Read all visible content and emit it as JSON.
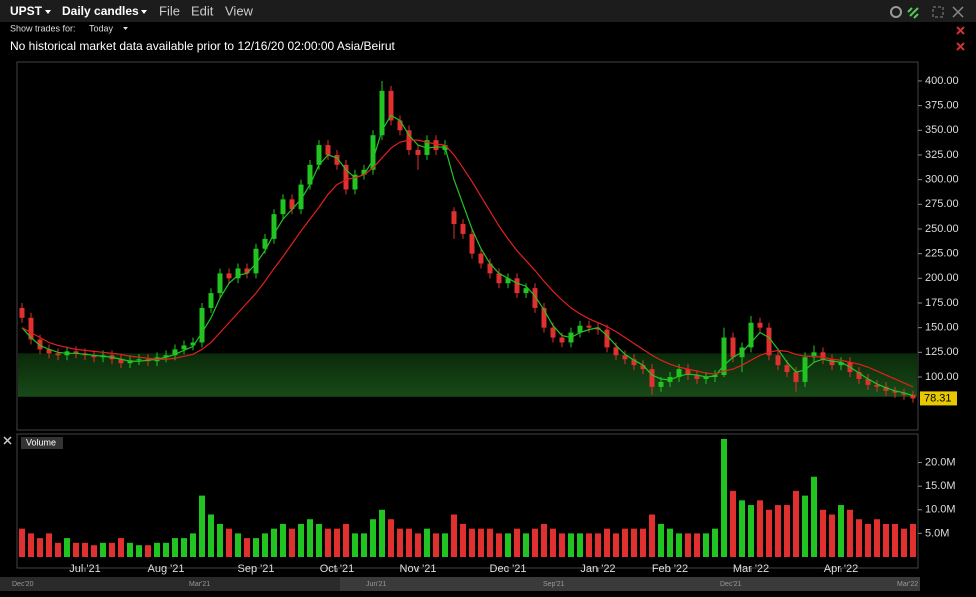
{
  "toolbar": {
    "symbol": "UPST",
    "interval": "Daily candles",
    "menu": [
      "File",
      "Edit",
      "View"
    ],
    "show_trades_label": "Show trades for:",
    "show_trades_value": "Today"
  },
  "notice": "No historical market data available prior to 12/16/20 02:00:00 Asia/Beirut",
  "chart_data": {
    "type": "candlestick",
    "up_color": "#22c422",
    "down_color": "#e03030",
    "open": [
      170,
      160,
      138,
      128,
      124,
      122,
      126,
      124,
      122,
      120,
      122,
      118,
      114,
      117,
      118,
      116,
      120,
      122,
      128,
      132,
      135,
      170,
      185,
      205,
      200,
      210,
      205,
      230,
      240,
      265,
      280,
      270,
      295,
      315,
      335,
      325,
      315,
      290,
      305,
      310,
      345,
      390,
      360,
      350,
      330,
      325,
      340,
      330,
      268,
      255,
      245,
      225,
      215,
      205,
      195,
      200,
      185,
      190,
      170,
      150,
      140,
      135,
      145,
      152,
      150,
      148,
      130,
      122,
      118,
      112,
      108,
      90,
      95,
      100,
      108,
      102,
      98,
      100,
      102,
      140,
      120,
      130,
      155,
      150,
      122,
      112,
      105,
      95,
      120,
      125,
      118,
      112,
      115,
      105,
      98,
      92,
      90,
      86,
      84,
      82
    ],
    "high": [
      175,
      165,
      143,
      133,
      129,
      131,
      131,
      129,
      127,
      127,
      127,
      123,
      122,
      123,
      123,
      125,
      127,
      133,
      137,
      140,
      175,
      190,
      210,
      210,
      215,
      215,
      235,
      245,
      270,
      285,
      285,
      300,
      320,
      340,
      340,
      330,
      320,
      310,
      315,
      350,
      400,
      395,
      365,
      355,
      335,
      345,
      345,
      340,
      272,
      260,
      250,
      230,
      220,
      210,
      205,
      205,
      195,
      195,
      175,
      155,
      145,
      150,
      157,
      157,
      155,
      153,
      135,
      127,
      123,
      117,
      113,
      100,
      105,
      113,
      113,
      107,
      105,
      107,
      150,
      145,
      135,
      162,
      160,
      155,
      127,
      117,
      110,
      125,
      132,
      130,
      123,
      120,
      120,
      110,
      103,
      97,
      95,
      90,
      88,
      86
    ],
    "low": [
      155,
      133,
      123,
      119,
      117,
      117,
      119,
      117,
      115,
      115,
      113,
      109,
      109,
      112,
      111,
      111,
      115,
      117,
      123,
      127,
      130,
      165,
      180,
      195,
      195,
      200,
      200,
      225,
      235,
      260,
      265,
      265,
      290,
      310,
      320,
      310,
      285,
      285,
      300,
      305,
      340,
      355,
      345,
      325,
      310,
      320,
      325,
      325,
      240,
      240,
      220,
      210,
      200,
      190,
      190,
      180,
      180,
      165,
      145,
      135,
      130,
      130,
      140,
      145,
      143,
      125,
      117,
      113,
      107,
      103,
      82,
      85,
      90,
      95,
      97,
      93,
      93,
      95,
      100,
      115,
      105,
      125,
      145,
      117,
      107,
      100,
      85,
      90,
      115,
      113,
      107,
      107,
      100,
      93,
      87,
      85,
      81,
      79,
      77,
      74
    ],
    "close": [
      160,
      138,
      128,
      124,
      122,
      126,
      124,
      122,
      120,
      122,
      118,
      114,
      117,
      118,
      116,
      120,
      122,
      128,
      132,
      135,
      170,
      185,
      205,
      200,
      210,
      205,
      230,
      240,
      265,
      280,
      270,
      295,
      315,
      335,
      325,
      315,
      290,
      305,
      310,
      345,
      390,
      360,
      350,
      330,
      325,
      340,
      330,
      335,
      255,
      245,
      225,
      215,
      205,
      195,
      200,
      185,
      190,
      170,
      150,
      140,
      135,
      145,
      152,
      150,
      148,
      130,
      122,
      118,
      112,
      108,
      90,
      95,
      100,
      108,
      102,
      98,
      100,
      102,
      140,
      120,
      130,
      155,
      150,
      122,
      112,
      105,
      95,
      120,
      125,
      118,
      112,
      115,
      105,
      98,
      92,
      90,
      86,
      84,
      82,
      78.31
    ],
    "ma_lines": [
      {
        "color": "#22c422",
        "values": [
          150,
          140,
          132,
          128,
          125,
          124,
          124,
          123,
          122,
          121,
          120,
          118,
          116,
          116,
          117,
          118,
          120,
          123,
          127,
          131,
          145,
          160,
          180,
          195,
          203,
          205,
          215,
          228,
          245,
          260,
          270,
          280,
          295,
          315,
          325,
          322,
          310,
          302,
          305,
          320,
          350,
          365,
          360,
          345,
          335,
          332,
          333,
          333,
          300,
          275,
          250,
          230,
          215,
          205,
          200,
          195,
          192,
          182,
          168,
          152,
          142,
          140,
          145,
          148,
          150,
          142,
          132,
          123,
          117,
          112,
          102,
          98,
          97,
          101,
          103,
          102,
          100,
          101,
          112,
          120,
          125,
          135,
          145,
          140,
          128,
          115,
          105,
          107,
          115,
          118,
          116,
          115,
          110,
          104,
          98,
          93,
          89,
          86,
          84,
          81
        ]
      },
      {
        "color": "#e02020",
        "values": [
          150,
          145,
          140,
          135,
          132,
          130,
          128,
          127,
          126,
          125,
          124,
          123,
          121,
          120,
          119,
          118,
          118,
          119,
          121,
          123,
          128,
          135,
          145,
          155,
          165,
          175,
          185,
          197,
          210,
          222,
          235,
          248,
          260,
          272,
          285,
          295,
          300,
          302,
          305,
          312,
          322,
          332,
          338,
          340,
          340,
          338,
          336,
          335,
          325,
          312,
          298,
          283,
          268,
          253,
          240,
          228,
          218,
          208,
          197,
          187,
          178,
          170,
          164,
          159,
          155,
          151,
          146,
          140,
          134,
          128,
          122,
          117,
          113,
          110,
          108,
          106,
          104,
          103,
          106,
          108,
          112,
          117,
          122,
          125,
          127,
          126,
          123,
          121,
          121,
          120,
          118,
          117,
          115,
          113,
          110,
          106,
          102,
          98,
          94,
          90
        ]
      }
    ],
    "band": [
      80,
      124
    ],
    "ylim": [
      46.3,
      419.2
    ],
    "yticks": [
      {
        "value": 100,
        "label": "100.00"
      },
      {
        "value": 125,
        "label": "125.00"
      },
      {
        "value": 150,
        "label": "150.00"
      },
      {
        "value": 175,
        "label": "175.00"
      },
      {
        "value": 200,
        "label": "200.00"
      },
      {
        "value": 225,
        "label": "225.00"
      },
      {
        "value": 250,
        "label": "250.00"
      },
      {
        "value": 275,
        "label": "275.00"
      },
      {
        "value": 300,
        "label": "300.00"
      },
      {
        "value": 325,
        "label": "325.00"
      },
      {
        "value": 350,
        "label": "350.00"
      },
      {
        "value": 375,
        "label": "375.00"
      },
      {
        "value": 400,
        "label": "400.00"
      }
    ],
    "xticks": [
      {
        "value": 7,
        "label": "Jul '21"
      },
      {
        "value": 16,
        "label": "Aug '21"
      },
      {
        "value": 26,
        "label": "Sep '21"
      },
      {
        "value": 35,
        "label": "Oct '21"
      },
      {
        "value": 44,
        "label": "Nov '21"
      },
      {
        "value": 54,
        "label": "Dec '21"
      },
      {
        "value": 64,
        "label": "Jan '22"
      },
      {
        "value": 72,
        "label": "Feb '22"
      },
      {
        "value": 81,
        "label": "Mar '22"
      },
      {
        "value": 91,
        "label": "Apr '22"
      }
    ],
    "volume": {
      "title": "Volume",
      "ylim": [
        0,
        25200000
      ],
      "yticks": [
        {
          "value": 5000000,
          "label": "5.0M"
        },
        {
          "value": 10000000,
          "label": "10.0M"
        },
        {
          "value": 15000000,
          "label": "15.0M"
        },
        {
          "value": 20000000,
          "label": "20.0M"
        }
      ],
      "values": [
        6000000,
        5000000,
        4000000,
        5000000,
        3000000,
        4000000,
        3000000,
        3000000,
        2500000,
        3000000,
        3000000,
        4000000,
        3000000,
        2500000,
        2500000,
        3000000,
        3000000,
        4000000,
        4000000,
        5000000,
        13000000,
        9000000,
        7000000,
        6000000,
        5000000,
        4000000,
        4000000,
        5000000,
        6000000,
        7000000,
        6000000,
        7000000,
        8000000,
        7000000,
        6000000,
        6000000,
        7000000,
        5000000,
        5000000,
        8000000,
        10000000,
        8000000,
        6000000,
        6000000,
        5000000,
        6000000,
        5000000,
        5000000,
        9000000,
        7000000,
        6000000,
        6000000,
        6000000,
        5000000,
        5000000,
        6000000,
        5000000,
        6000000,
        7000000,
        6000000,
        5000000,
        5000000,
        5000000,
        5000000,
        5000000,
        6000000,
        5000000,
        6000000,
        6000000,
        6000000,
        9000000,
        7000000,
        6000000,
        5000000,
        5000000,
        5000000,
        5000000,
        6000000,
        25000000,
        14000000,
        12000000,
        11000000,
        12000000,
        10000000,
        11000000,
        11000000,
        14000000,
        13000000,
        17000000,
        10000000,
        9000000,
        11000000,
        10000000,
        8000000,
        7000000,
        8000000,
        7000000,
        7000000,
        6000000,
        7000000
      ]
    },
    "navigator": [
      "Dec'20",
      "Mar'21",
      "Jun'21",
      "Sep'21",
      "Dec'21",
      "Mar'22"
    ]
  }
}
